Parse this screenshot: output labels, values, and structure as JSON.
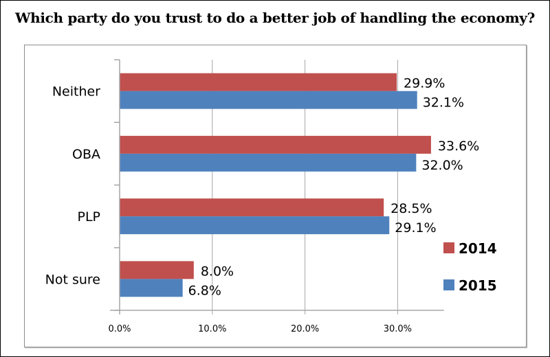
{
  "chart_data": {
    "type": "bar",
    "orientation": "horizontal",
    "title": "Which party do you trust to do a better job of handling the economy?",
    "categories": [
      "Neither",
      "OBA",
      "PLP",
      "Not sure"
    ],
    "series": [
      {
        "name": "2014",
        "color": "#c0504d",
        "values": [
          29.9,
          33.6,
          28.5,
          8.0
        ],
        "labels": [
          "29.9%",
          "33.6%",
          "28.5%",
          "8.0%"
        ]
      },
      {
        "name": "2015",
        "color": "#4f81bd",
        "values": [
          32.1,
          32.0,
          29.1,
          6.8
        ],
        "labels": [
          "32.1%",
          "32.0%",
          "29.1%",
          "6.8%"
        ]
      }
    ],
    "xlabel": "",
    "ylabel": "",
    "xlim": [
      0,
      35
    ],
    "xticks": [
      0,
      10,
      20,
      30
    ],
    "xtick_labels": [
      "0.0%",
      "10.0%",
      "20.0%",
      "30.0%"
    ],
    "grid": "vertical",
    "legend": "right"
  }
}
